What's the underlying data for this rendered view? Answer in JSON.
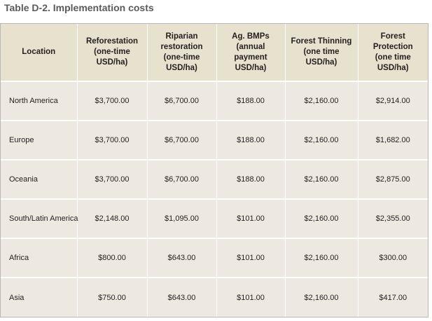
{
  "title": "Table D-2. Implementation costs",
  "table": {
    "headers": [
      [
        "Location"
      ],
      [
        "Reforestation",
        "(one-time",
        "USD/ha)"
      ],
      [
        "Riparian",
        "restoration",
        "(one-time",
        "USD/ha)"
      ],
      [
        "Ag. BMPs",
        "(annual",
        "payment",
        "USD/ha)"
      ],
      [
        "Forest Thinning",
        "(one time",
        "USD/ha)"
      ],
      [
        "Forest",
        "Protection",
        "(one time",
        "USD/ha)"
      ]
    ],
    "rows": [
      [
        "North America",
        "$3,700.00",
        "$6,700.00",
        "$188.00",
        "$2,160.00",
        "$2,914.00"
      ],
      [
        "Europe",
        "$3,700.00",
        "$6,700.00",
        "$188.00",
        "$2,160.00",
        "$1,682.00"
      ],
      [
        "Oceania",
        "$3,700.00",
        "$6,700.00",
        "$188.00",
        "$2,160.00",
        "$2,875.00"
      ],
      [
        "South/Latin America",
        "$2,148.00",
        "$1,095.00",
        "$101.00",
        "$2,160.00",
        "$2,355.00"
      ],
      [
        "Africa",
        "$800.00",
        "$643.00",
        "$101.00",
        "$2,160.00",
        "$300.00"
      ],
      [
        "Asia",
        "$750.00",
        "$643.00",
        "$101.00",
        "$2,160.00",
        "$417.00"
      ]
    ]
  },
  "colors": {
    "header_background": "#e8e1ce",
    "body_background": "#ede9e0",
    "rule": "#ffffff",
    "title_text": "#5a5a5a"
  }
}
